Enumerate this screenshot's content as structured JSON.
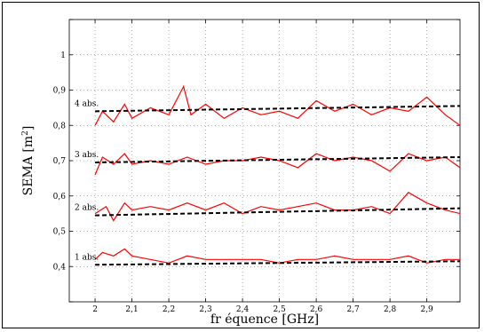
{
  "chart_data": {
    "type": "line",
    "xlabel": "fr équence [GHz]",
    "ylabel": "SEMA [m",
    "ylabel_superscript": "2",
    "ylabel_close": "]",
    "xlim": [
      1.93,
      2.99
    ],
    "ylim": [
      0.3,
      1.1
    ],
    "xticks": [
      {
        "v": 2.0,
        "label": "2"
      },
      {
        "v": 2.1,
        "label": "2,1"
      },
      {
        "v": 2.2,
        "label": "2,2"
      },
      {
        "v": 2.3,
        "label": "2,3"
      },
      {
        "v": 2.4,
        "label": "2,4"
      },
      {
        "v": 2.5,
        "label": "2,5"
      },
      {
        "v": 2.6,
        "label": "2,6"
      },
      {
        "v": 2.7,
        "label": "2,7"
      },
      {
        "v": 2.8,
        "label": "2,8"
      },
      {
        "v": 2.9,
        "label": "2,9"
      }
    ],
    "yticks": [
      {
        "v": 0.3,
        "label": ""
      },
      {
        "v": 0.4,
        "label": "0,4"
      },
      {
        "v": 0.5,
        "label": "0,5"
      },
      {
        "v": 0.6,
        "label": "0,6"
      },
      {
        "v": 0.7,
        "label": "0,7"
      },
      {
        "v": 0.8,
        "label": "0,8"
      },
      {
        "v": 0.9,
        "label": "0,9"
      },
      {
        "v": 1.0,
        "label": "1"
      },
      {
        "v": 1.1,
        "label": ""
      }
    ],
    "grid": true,
    "series": [
      {
        "label": "1 abs.",
        "measured_x": [
          2.0,
          2.02,
          2.05,
          2.08,
          2.1,
          2.15,
          2.2,
          2.25,
          2.3,
          2.35,
          2.4,
          2.45,
          2.5,
          2.55,
          2.6,
          2.65,
          2.7,
          2.75,
          2.8,
          2.85,
          2.9,
          2.95,
          2.99
        ],
        "measured_y": [
          0.42,
          0.44,
          0.43,
          0.45,
          0.43,
          0.42,
          0.41,
          0.43,
          0.42,
          0.42,
          0.42,
          0.42,
          0.41,
          0.42,
          0.42,
          0.43,
          0.42,
          0.42,
          0.42,
          0.43,
          0.41,
          0.42,
          0.42
        ],
        "fit": [
          [
            2.0,
            0.405
          ],
          [
            2.99,
            0.415
          ]
        ]
      },
      {
        "label": "2 abs.",
        "measured_x": [
          2.0,
          2.03,
          2.05,
          2.08,
          2.1,
          2.15,
          2.2,
          2.25,
          2.3,
          2.35,
          2.4,
          2.45,
          2.5,
          2.55,
          2.6,
          2.65,
          2.7,
          2.75,
          2.8,
          2.85,
          2.9,
          2.95,
          2.99
        ],
        "measured_y": [
          0.55,
          0.57,
          0.53,
          0.58,
          0.56,
          0.57,
          0.56,
          0.58,
          0.56,
          0.58,
          0.55,
          0.57,
          0.56,
          0.57,
          0.58,
          0.56,
          0.56,
          0.57,
          0.55,
          0.61,
          0.58,
          0.56,
          0.55
        ],
        "fit": [
          [
            2.0,
            0.545
          ],
          [
            2.99,
            0.565
          ]
        ]
      },
      {
        "label": "3 abs.",
        "measured_x": [
          2.0,
          2.02,
          2.05,
          2.08,
          2.1,
          2.15,
          2.2,
          2.25,
          2.3,
          2.35,
          2.4,
          2.45,
          2.5,
          2.55,
          2.6,
          2.65,
          2.7,
          2.75,
          2.8,
          2.85,
          2.9,
          2.95,
          2.99
        ],
        "measured_y": [
          0.66,
          0.71,
          0.69,
          0.72,
          0.69,
          0.7,
          0.69,
          0.71,
          0.69,
          0.7,
          0.7,
          0.71,
          0.7,
          0.68,
          0.72,
          0.7,
          0.71,
          0.7,
          0.67,
          0.72,
          0.7,
          0.71,
          0.68
        ],
        "fit": [
          [
            2.0,
            0.695
          ],
          [
            2.99,
            0.71
          ]
        ]
      },
      {
        "label": "4 abs.",
        "measured_x": [
          2.0,
          2.02,
          2.05,
          2.08,
          2.1,
          2.15,
          2.2,
          2.24,
          2.26,
          2.3,
          2.35,
          2.4,
          2.45,
          2.5,
          2.55,
          2.6,
          2.65,
          2.7,
          2.75,
          2.8,
          2.85,
          2.9,
          2.95,
          2.99
        ],
        "measured_y": [
          0.8,
          0.84,
          0.81,
          0.86,
          0.82,
          0.85,
          0.83,
          0.91,
          0.83,
          0.86,
          0.82,
          0.85,
          0.83,
          0.84,
          0.82,
          0.87,
          0.84,
          0.86,
          0.83,
          0.85,
          0.84,
          0.88,
          0.83,
          0.8
        ],
        "fit": [
          [
            2.0,
            0.84
          ],
          [
            2.99,
            0.855
          ]
        ]
      }
    ]
  }
}
